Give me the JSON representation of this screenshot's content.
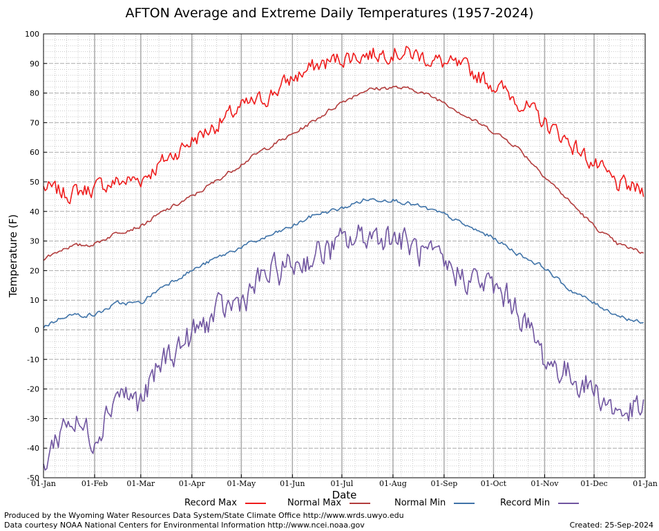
{
  "chart_data": {
    "type": "line",
    "title": "AFTON Average and Extreme Daily Temperatures (1957-2024)",
    "xlabel": "Date",
    "ylabel": "Temperature (F)",
    "ylim": [
      -50,
      100
    ],
    "yticks": [
      -50,
      -40,
      -30,
      -20,
      -10,
      0,
      10,
      20,
      30,
      40,
      50,
      60,
      70,
      80,
      90,
      100
    ],
    "xticks": [
      {
        "label": "01-Jan",
        "day": 0
      },
      {
        "label": "01-Feb",
        "day": 31
      },
      {
        "label": "01-Mar",
        "day": 59
      },
      {
        "label": "01-Apr",
        "day": 90
      },
      {
        "label": "01-May",
        "day": 120
      },
      {
        "label": "01-Jun",
        "day": 151
      },
      {
        "label": "01-Jul",
        "day": 181
      },
      {
        "label": "01-Aug",
        "day": 212
      },
      {
        "label": "01-Sep",
        "day": 243
      },
      {
        "label": "01-Oct",
        "day": 273
      },
      {
        "label": "01-Nov",
        "day": 304
      },
      {
        "label": "01-Dec",
        "day": 334
      },
      {
        "label": "01-Jan",
        "day": 365
      }
    ],
    "grid": true,
    "series": [
      {
        "name": "Record Max",
        "color": "#ee1c1c",
        "dates": [
          "01-Jan",
          "15-Jan",
          "01-Feb",
          "15-Feb",
          "01-Mar",
          "15-Mar",
          "01-Apr",
          "15-Apr",
          "01-May",
          "15-May",
          "01-Jun",
          "15-Jun",
          "01-Jul",
          "15-Jul",
          "01-Aug",
          "15-Aug",
          "01-Sep",
          "15-Sep",
          "01-Oct",
          "15-Oct",
          "01-Nov",
          "15-Nov",
          "01-Dec",
          "15-Dec",
          "31-Dec"
        ],
        "values": [
          48,
          46,
          48,
          50,
          51,
          57,
          64,
          69,
          75,
          78,
          85,
          89,
          92,
          93,
          94,
          93,
          90,
          88,
          83,
          78,
          70,
          64,
          56,
          49,
          47
        ]
      },
      {
        "name": "Normal Max",
        "color": "#b23c3c",
        "dates": [
          "01-Jan",
          "15-Jan",
          "01-Feb",
          "15-Feb",
          "01-Mar",
          "15-Mar",
          "01-Apr",
          "15-Apr",
          "01-May",
          "15-May",
          "01-Jun",
          "15-Jun",
          "01-Jul",
          "15-Jul",
          "01-Aug",
          "15-Aug",
          "01-Sep",
          "15-Sep",
          "01-Oct",
          "15-Oct",
          "01-Nov",
          "15-Nov",
          "01-Dec",
          "15-Dec",
          "31-Dec"
        ],
        "values": [
          24,
          28,
          29,
          33,
          35,
          40,
          45,
          50,
          56,
          61,
          66,
          71,
          77,
          81,
          82,
          81,
          77,
          72,
          67,
          62,
          52,
          44,
          35,
          29,
          26
        ]
      },
      {
        "name": "Normal Min",
        "color": "#3f73a8",
        "dates": [
          "01-Jan",
          "15-Jan",
          "01-Feb",
          "15-Feb",
          "01-Mar",
          "15-Mar",
          "01-Apr",
          "15-Apr",
          "01-May",
          "15-May",
          "01-Jun",
          "15-Jun",
          "01-Jul",
          "15-Jul",
          "01-Aug",
          "15-Aug",
          "01-Sep",
          "15-Sep",
          "01-Oct",
          "15-Oct",
          "01-Nov",
          "15-Nov",
          "01-Dec",
          "15-Dec",
          "31-Dec"
        ],
        "values": [
          1,
          5,
          5,
          9,
          9,
          15,
          20,
          24,
          28,
          31,
          35,
          39,
          41,
          44,
          44,
          42,
          39,
          35,
          31,
          26,
          21,
          14,
          9,
          5,
          2
        ]
      },
      {
        "name": "Record Min",
        "color": "#7055a0",
        "dates": [
          "01-Jan",
          "15-Jan",
          "01-Feb",
          "15-Feb",
          "01-Mar",
          "15-Mar",
          "01-Apr",
          "15-Apr",
          "01-May",
          "15-May",
          "01-Jun",
          "15-Jun",
          "01-Jul",
          "15-Jul",
          "01-Aug",
          "15-Aug",
          "01-Sep",
          "15-Sep",
          "01-Oct",
          "15-Oct",
          "01-Nov",
          "15-Nov",
          "01-Dec",
          "15-Dec",
          "31-Dec"
        ],
        "values": [
          -45,
          -30,
          -36,
          -20,
          -25,
          -10,
          -2,
          5,
          10,
          18,
          22,
          25,
          29,
          32,
          32,
          27,
          21,
          18,
          14,
          8,
          -10,
          -15,
          -20,
          -28,
          -27
        ]
      }
    ]
  },
  "legend": {
    "record_max": "Record Max",
    "normal_max": "Normal Max",
    "normal_min": "Normal Min",
    "record_min": "Record Min"
  },
  "footer": {
    "produced_by": "Produced by the Wyoming Water Resources Data System/State Climate Office http://www.wrds.uwyo.edu",
    "data_courtesy": "Data courtesy NOAA National Centers for Environmental Information http://www.ncei.noaa.gov",
    "created": "Created:  25-Sep-2024"
  }
}
